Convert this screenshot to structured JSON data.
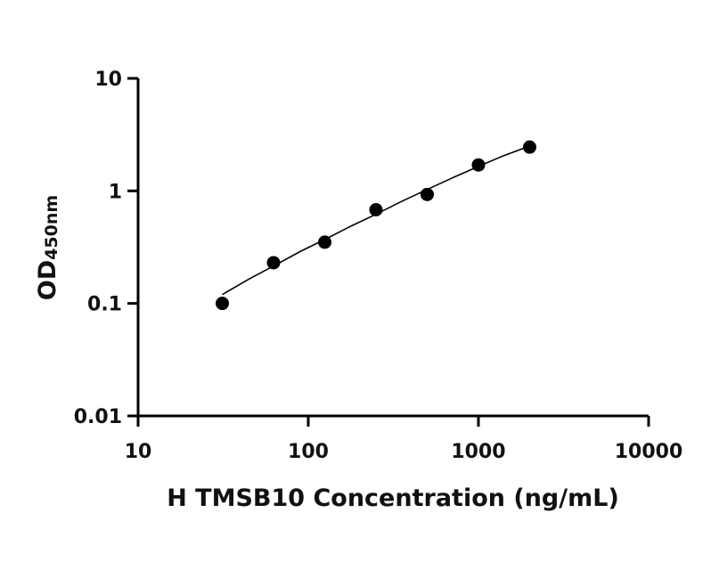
{
  "chart_data": {
    "type": "scatter",
    "xlabel": "H TMSB10 Concentration (ng/mL)",
    "ylabel": "OD",
    "ylabel_subscript": "450nm",
    "xscale": "log",
    "yscale": "log",
    "xlim": [
      10,
      10000
    ],
    "ylim": [
      0.01,
      10
    ],
    "x_ticks": [
      10,
      100,
      1000,
      10000
    ],
    "x_tick_labels": [
      "10",
      "100",
      "1000",
      "10000"
    ],
    "y_ticks": [
      0.01,
      0.1,
      1,
      10
    ],
    "y_tick_labels": [
      "0.01",
      "0.1",
      "1",
      "10"
    ],
    "grid": false,
    "series": [
      {
        "x": [
          31.25,
          62.5,
          125,
          250,
          500,
          1000,
          2000
        ],
        "y": [
          0.1,
          0.23,
          0.35,
          0.68,
          0.93,
          1.7,
          2.45
        ],
        "color": "#000000",
        "marker": "circle"
      }
    ],
    "fit_curve": {
      "x": [
        31.25,
        45,
        62.5,
        90,
        125,
        180,
        250,
        350,
        500,
        700,
        1000,
        1400,
        2000
      ],
      "y": [
        0.12,
        0.165,
        0.215,
        0.29,
        0.37,
        0.49,
        0.62,
        0.8,
        1.03,
        1.3,
        1.65,
        2.05,
        2.5
      ],
      "color": "#000000"
    }
  }
}
